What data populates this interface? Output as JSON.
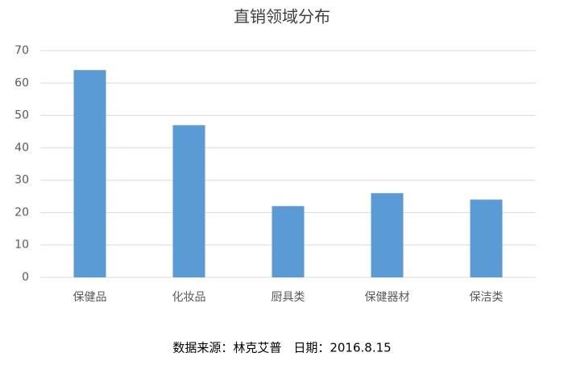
{
  "chart_data": {
    "type": "bar",
    "title": "直销领域分布",
    "categories": [
      "保健品",
      "化妆品",
      "厨具类",
      "保健器材",
      "保洁类"
    ],
    "values": [
      64,
      47,
      22,
      26,
      24
    ],
    "color": "#5b9bd5",
    "ylim": [
      0,
      70
    ],
    "yticks": [
      0,
      10,
      20,
      30,
      40,
      50,
      60,
      70
    ],
    "grid": true,
    "note": "数据来源：林克艾普　日期：2016.8.15"
  }
}
